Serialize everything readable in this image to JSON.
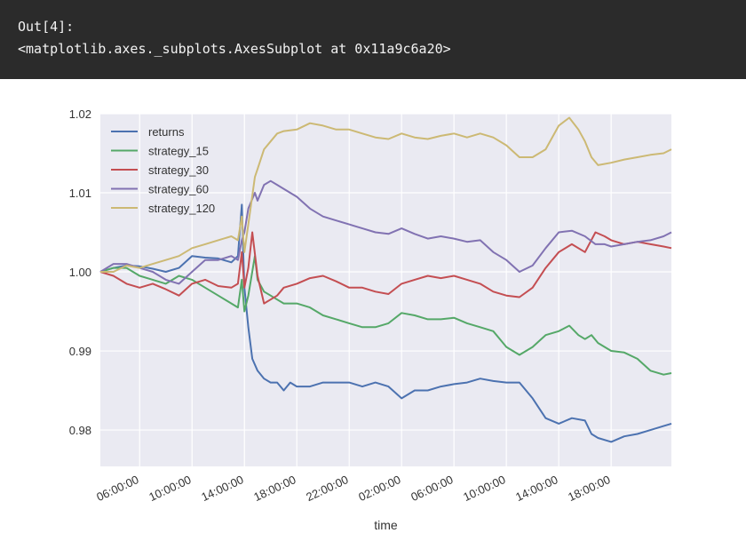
{
  "output": {
    "prompt": "Out[4]:",
    "text": "<matplotlib.axes._subplots.AxesSubplot at 0x11a9c6a20>"
  },
  "colors": {
    "banner_bg": "#2b2b2b",
    "plot_bg": "#eaeaf2",
    "grid": "#ffffff"
  },
  "chart_data": {
    "type": "line",
    "xlabel": "time",
    "ylabel": "",
    "grid": true,
    "legend_position": "top-left",
    "ylim": [
      0.9754,
      1.02
    ],
    "yticks": [
      0.98,
      0.99,
      1.0,
      1.01,
      1.02
    ],
    "ytick_labels": [
      "0.98",
      "0.99",
      "1.00",
      "1.01",
      "1.02"
    ],
    "x_hours": [
      3,
      46.6
    ],
    "xticks": [
      6,
      10,
      14,
      18,
      22,
      26,
      30,
      34,
      38,
      42
    ],
    "xtick_labels": [
      "06:00:00",
      "10:00:00",
      "14:00:00",
      "18:00:00",
      "22:00:00",
      "02:00:00",
      "06:00:00",
      "10:00:00",
      "14:00:00",
      "18:00:00"
    ],
    "series": [
      {
        "name": "returns",
        "color": "#4c72b0",
        "points": [
          [
            3.0,
            1.0
          ],
          [
            4.0,
            1.0005
          ],
          [
            5.0,
            1.0008
          ],
          [
            6.0,
            1.0007
          ],
          [
            7.0,
            1.0004
          ],
          [
            8.0,
            1.0
          ],
          [
            9.0,
            1.0005
          ],
          [
            10.0,
            1.002
          ],
          [
            11.0,
            1.0018
          ],
          [
            12.0,
            1.0017
          ],
          [
            13.0,
            1.0012
          ],
          [
            13.5,
            1.002
          ],
          [
            13.8,
            1.0085
          ],
          [
            14.0,
            0.998
          ],
          [
            14.3,
            0.993
          ],
          [
            14.6,
            0.989
          ],
          [
            15.0,
            0.9875
          ],
          [
            15.5,
            0.9865
          ],
          [
            16.0,
            0.986
          ],
          [
            16.5,
            0.986
          ],
          [
            17.0,
            0.985
          ],
          [
            17.5,
            0.986
          ],
          [
            18.0,
            0.9855
          ],
          [
            19.0,
            0.9855
          ],
          [
            20.0,
            0.986
          ],
          [
            21.0,
            0.986
          ],
          [
            22.0,
            0.986
          ],
          [
            23.0,
            0.9855
          ],
          [
            24.0,
            0.986
          ],
          [
            25.0,
            0.9855
          ],
          [
            26.0,
            0.984
          ],
          [
            27.0,
            0.985
          ],
          [
            28.0,
            0.985
          ],
          [
            29.0,
            0.9855
          ],
          [
            30.0,
            0.9858
          ],
          [
            31.0,
            0.986
          ],
          [
            32.0,
            0.9865
          ],
          [
            33.0,
            0.9862
          ],
          [
            34.0,
            0.986
          ],
          [
            35.0,
            0.986
          ],
          [
            36.0,
            0.984
          ],
          [
            37.0,
            0.9815
          ],
          [
            38.0,
            0.9808
          ],
          [
            39.0,
            0.9815
          ],
          [
            40.0,
            0.9812
          ],
          [
            40.5,
            0.9795
          ],
          [
            41.0,
            0.979
          ],
          [
            42.0,
            0.9785
          ],
          [
            43.0,
            0.9792
          ],
          [
            44.0,
            0.9795
          ],
          [
            45.0,
            0.98
          ],
          [
            46.0,
            0.9805
          ],
          [
            46.6,
            0.9808
          ]
        ]
      },
      {
        "name": "strategy_15",
        "color": "#55a868",
        "points": [
          [
            3.0,
            1.0
          ],
          [
            4.0,
            1.0005
          ],
          [
            5.0,
            1.0005
          ],
          [
            6.0,
            0.9995
          ],
          [
            7.0,
            0.999
          ],
          [
            8.0,
            0.9985
          ],
          [
            9.0,
            0.9995
          ],
          [
            10.0,
            0.999
          ],
          [
            11.0,
            0.998
          ],
          [
            12.0,
            0.997
          ],
          [
            13.0,
            0.996
          ],
          [
            13.5,
            0.9955
          ],
          [
            13.8,
            0.999
          ],
          [
            14.0,
            0.995
          ],
          [
            14.3,
            0.997
          ],
          [
            14.8,
            1.002
          ],
          [
            15.0,
            0.999
          ],
          [
            15.5,
            0.9975
          ],
          [
            16.0,
            0.997
          ],
          [
            16.5,
            0.9965
          ],
          [
            17.0,
            0.996
          ],
          [
            18.0,
            0.996
          ],
          [
            19.0,
            0.9955
          ],
          [
            20.0,
            0.9945
          ],
          [
            21.0,
            0.994
          ],
          [
            22.0,
            0.9935
          ],
          [
            23.0,
            0.993
          ],
          [
            24.0,
            0.993
          ],
          [
            25.0,
            0.9935
          ],
          [
            26.0,
            0.9948
          ],
          [
            27.0,
            0.9945
          ],
          [
            28.0,
            0.994
          ],
          [
            29.0,
            0.994
          ],
          [
            30.0,
            0.9942
          ],
          [
            31.0,
            0.9935
          ],
          [
            32.0,
            0.993
          ],
          [
            33.0,
            0.9925
          ],
          [
            34.0,
            0.9905
          ],
          [
            35.0,
            0.9895
          ],
          [
            36.0,
            0.9905
          ],
          [
            37.0,
            0.992
          ],
          [
            38.0,
            0.9925
          ],
          [
            38.8,
            0.9932
          ],
          [
            39.5,
            0.992
          ],
          [
            40.0,
            0.9915
          ],
          [
            40.5,
            0.992
          ],
          [
            41.0,
            0.991
          ],
          [
            42.0,
            0.99
          ],
          [
            43.0,
            0.9898
          ],
          [
            44.0,
            0.989
          ],
          [
            45.0,
            0.9875
          ],
          [
            46.0,
            0.987
          ],
          [
            46.6,
            0.9872
          ]
        ]
      },
      {
        "name": "strategy_30",
        "color": "#c44e52",
        "points": [
          [
            3.0,
            1.0
          ],
          [
            4.0,
            0.9995
          ],
          [
            5.0,
            0.9985
          ],
          [
            6.0,
            0.998
          ],
          [
            7.0,
            0.9985
          ],
          [
            8.0,
            0.9978
          ],
          [
            9.0,
            0.997
          ],
          [
            10.0,
            0.9985
          ],
          [
            11.0,
            0.999
          ],
          [
            12.0,
            0.9982
          ],
          [
            13.0,
            0.998
          ],
          [
            13.5,
            0.9985
          ],
          [
            13.8,
            1.0025
          ],
          [
            14.0,
            0.998
          ],
          [
            14.3,
            1.0005
          ],
          [
            14.6,
            1.005
          ],
          [
            15.0,
            0.9995
          ],
          [
            15.5,
            0.996
          ],
          [
            16.0,
            0.9965
          ],
          [
            16.5,
            0.997
          ],
          [
            17.0,
            0.998
          ],
          [
            18.0,
            0.9985
          ],
          [
            19.0,
            0.9992
          ],
          [
            20.0,
            0.9995
          ],
          [
            21.0,
            0.9988
          ],
          [
            22.0,
            0.998
          ],
          [
            23.0,
            0.998
          ],
          [
            24.0,
            0.9975
          ],
          [
            25.0,
            0.9972
          ],
          [
            26.0,
            0.9985
          ],
          [
            27.0,
            0.999
          ],
          [
            28.0,
            0.9995
          ],
          [
            29.0,
            0.9992
          ],
          [
            30.0,
            0.9995
          ],
          [
            31.0,
            0.999
          ],
          [
            32.0,
            0.9985
          ],
          [
            33.0,
            0.9975
          ],
          [
            34.0,
            0.997
          ],
          [
            35.0,
            0.9968
          ],
          [
            36.0,
            0.998
          ],
          [
            37.0,
            1.0005
          ],
          [
            38.0,
            1.0025
          ],
          [
            39.0,
            1.0035
          ],
          [
            40.0,
            1.0025
          ],
          [
            40.8,
            1.005
          ],
          [
            41.5,
            1.0045
          ],
          [
            42.0,
            1.004
          ],
          [
            43.0,
            1.0035
          ],
          [
            44.0,
            1.0038
          ],
          [
            45.0,
            1.0035
          ],
          [
            46.0,
            1.0032
          ],
          [
            46.6,
            1.003
          ]
        ]
      },
      {
        "name": "strategy_60",
        "color": "#8172b2",
        "points": [
          [
            3.0,
            1.0
          ],
          [
            4.0,
            1.001
          ],
          [
            5.0,
            1.001
          ],
          [
            6.0,
            1.0005
          ],
          [
            7.0,
            1.0
          ],
          [
            8.0,
            0.999
          ],
          [
            9.0,
            0.9985
          ],
          [
            10.0,
            1.0
          ],
          [
            11.0,
            1.0015
          ],
          [
            12.0,
            1.0015
          ],
          [
            13.0,
            1.002
          ],
          [
            13.5,
            1.0015
          ],
          [
            13.8,
            1.004
          ],
          [
            14.0,
            1.005
          ],
          [
            14.3,
            1.008
          ],
          [
            14.8,
            1.01
          ],
          [
            15.0,
            1.009
          ],
          [
            15.5,
            1.011
          ],
          [
            16.0,
            1.0115
          ],
          [
            16.5,
            1.011
          ],
          [
            17.0,
            1.0105
          ],
          [
            18.0,
            1.0095
          ],
          [
            19.0,
            1.008
          ],
          [
            20.0,
            1.007
          ],
          [
            21.0,
            1.0065
          ],
          [
            22.0,
            1.006
          ],
          [
            23.0,
            1.0055
          ],
          [
            24.0,
            1.005
          ],
          [
            25.0,
            1.0048
          ],
          [
            26.0,
            1.0055
          ],
          [
            27.0,
            1.0048
          ],
          [
            28.0,
            1.0042
          ],
          [
            29.0,
            1.0045
          ],
          [
            30.0,
            1.0042
          ],
          [
            31.0,
            1.0038
          ],
          [
            32.0,
            1.004
          ],
          [
            33.0,
            1.0025
          ],
          [
            34.0,
            1.0015
          ],
          [
            35.0,
            1.0
          ],
          [
            36.0,
            1.0008
          ],
          [
            37.0,
            1.003
          ],
          [
            38.0,
            1.005
          ],
          [
            39.0,
            1.0052
          ],
          [
            40.0,
            1.0045
          ],
          [
            40.8,
            1.0035
          ],
          [
            41.5,
            1.0035
          ],
          [
            42.0,
            1.0032
          ],
          [
            43.0,
            1.0035
          ],
          [
            44.0,
            1.0038
          ],
          [
            45.0,
            1.004
          ],
          [
            46.0,
            1.0045
          ],
          [
            46.6,
            1.005
          ]
        ]
      },
      {
        "name": "strategy_120",
        "color": "#ccb974",
        "points": [
          [
            3.0,
            1.0
          ],
          [
            4.0,
            1.0
          ],
          [
            5.0,
            1.0008
          ],
          [
            6.0,
            1.0005
          ],
          [
            7.0,
            1.001
          ],
          [
            8.0,
            1.0015
          ],
          [
            9.0,
            1.002
          ],
          [
            10.0,
            1.003
          ],
          [
            11.0,
            1.0035
          ],
          [
            12.0,
            1.004
          ],
          [
            13.0,
            1.0045
          ],
          [
            13.5,
            1.004
          ],
          [
            13.8,
            1.007
          ],
          [
            14.0,
            1.0025
          ],
          [
            14.3,
            1.006
          ],
          [
            14.8,
            1.012
          ],
          [
            15.0,
            1.013
          ],
          [
            15.5,
            1.0155
          ],
          [
            16.0,
            1.0165
          ],
          [
            16.5,
            1.0175
          ],
          [
            17.0,
            1.0178
          ],
          [
            18.0,
            1.018
          ],
          [
            19.0,
            1.0188
          ],
          [
            20.0,
            1.0185
          ],
          [
            21.0,
            1.018
          ],
          [
            22.0,
            1.018
          ],
          [
            23.0,
            1.0175
          ],
          [
            24.0,
            1.017
          ],
          [
            25.0,
            1.0168
          ],
          [
            26.0,
            1.0175
          ],
          [
            27.0,
            1.017
          ],
          [
            28.0,
            1.0168
          ],
          [
            29.0,
            1.0172
          ],
          [
            30.0,
            1.0175
          ],
          [
            31.0,
            1.017
          ],
          [
            32.0,
            1.0175
          ],
          [
            33.0,
            1.017
          ],
          [
            34.0,
            1.016
          ],
          [
            35.0,
            1.0145
          ],
          [
            36.0,
            1.0145
          ],
          [
            37.0,
            1.0155
          ],
          [
            38.0,
            1.0185
          ],
          [
            38.8,
            1.0195
          ],
          [
            39.5,
            1.018
          ],
          [
            40.0,
            1.0165
          ],
          [
            40.5,
            1.0145
          ],
          [
            41.0,
            1.0135
          ],
          [
            42.0,
            1.0138
          ],
          [
            43.0,
            1.0142
          ],
          [
            44.0,
            1.0145
          ],
          [
            45.0,
            1.0148
          ],
          [
            46.0,
            1.015
          ],
          [
            46.6,
            1.0155
          ]
        ]
      }
    ]
  }
}
